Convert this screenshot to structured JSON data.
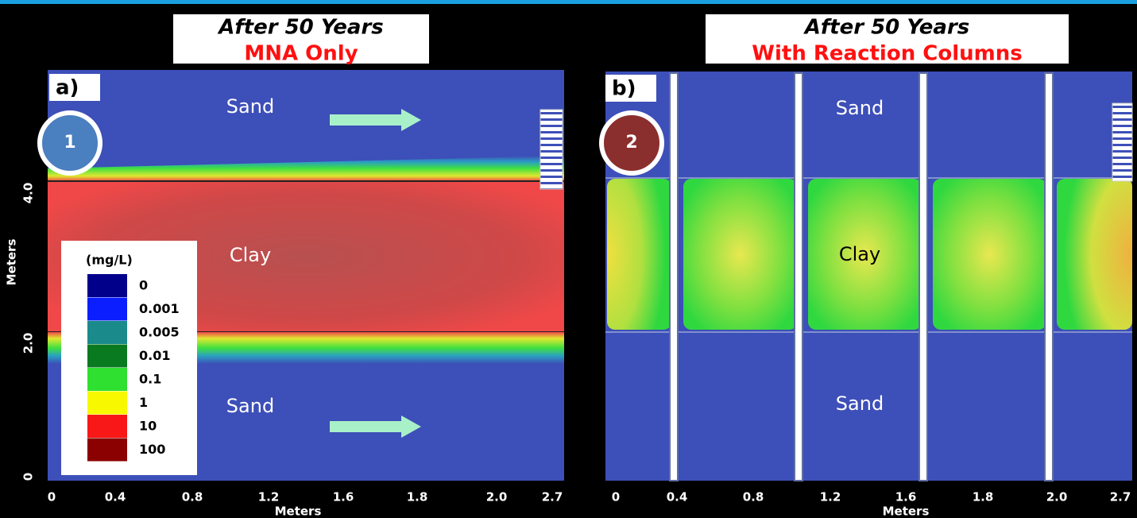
{
  "panels": [
    {
      "label": "a)",
      "title": "After 50 Years",
      "subtitle": "MNA Only",
      "badge": "1",
      "regions": [
        "Sand",
        "Clay",
        "Sand"
      ],
      "y_axis_title": "Meters",
      "y_ticks": [
        "4.0",
        "2.0",
        "0"
      ],
      "x_ticks": [
        "0",
        "0.4",
        "0.8",
        "1.2",
        "1.6",
        "1.8",
        "2.0",
        "2.7"
      ],
      "x_axis_title": "Meters"
    },
    {
      "label": "b)",
      "title": "After 50 Years",
      "subtitle": "With Reaction Columns",
      "badge": "2",
      "regions": [
        "Sand",
        "Clay",
        "Sand"
      ],
      "x_ticks": [
        "0",
        "0.4",
        "0.8",
        "1.2",
        "1.6",
        "1.8",
        "2.0",
        "2.7"
      ],
      "x_axis_title": "Meters"
    }
  ],
  "legend": {
    "title": "(mg/L)",
    "entries": [
      "0",
      "0.001",
      "0.005",
      "0.01",
      "0.1",
      "1",
      "10",
      "100"
    ]
  }
}
